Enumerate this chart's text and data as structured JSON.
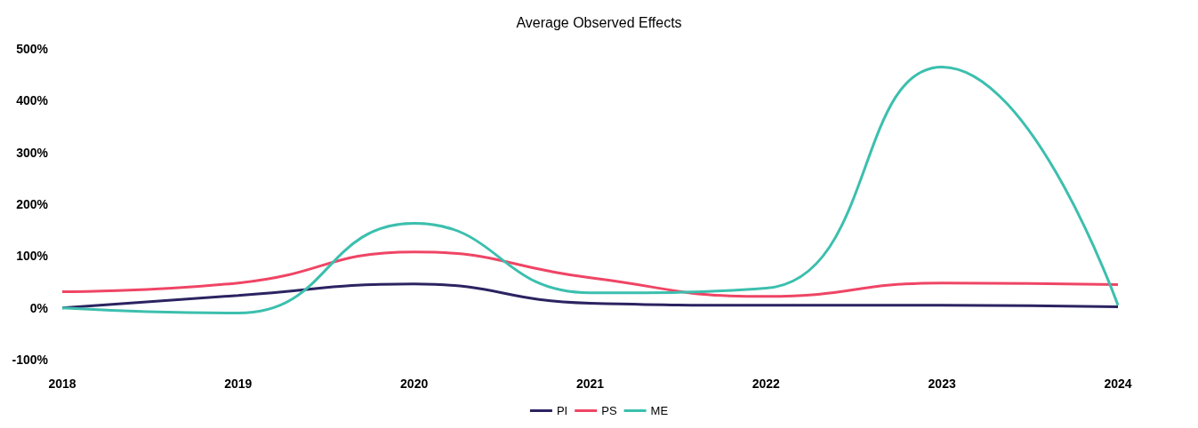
{
  "chart_data": {
    "type": "line",
    "title": "Average Observed Effects",
    "categories": [
      "2018",
      "2019",
      "2020",
      "2021",
      "2022",
      "2023",
      "2024"
    ],
    "series": [
      {
        "name": "PI",
        "color": "#2b2361",
        "values": [
          0,
          24,
          46,
          9,
          5,
          5,
          2
        ]
      },
      {
        "name": "PS",
        "color": "#ef4565",
        "values": [
          31,
          48,
          108,
          58,
          22,
          48,
          45
        ]
      },
      {
        "name": "ME",
        "color": "#3cbfae",
        "values": [
          0,
          -10,
          163,
          29,
          38,
          465,
          5
        ]
      }
    ],
    "ylim": [
      -100,
      500
    ],
    "yticks": [
      {
        "value": -100,
        "label": "-100%"
      },
      {
        "value": 0,
        "label": "0%"
      },
      {
        "value": 100,
        "label": "100%"
      },
      {
        "value": 200,
        "label": "200%"
      },
      {
        "value": 300,
        "label": "300%"
      },
      {
        "value": 400,
        "label": "400%"
      },
      {
        "value": 500,
        "label": "500%"
      }
    ],
    "grid": false,
    "legend": "bottom",
    "marker": "none",
    "line_style": "solid"
  }
}
